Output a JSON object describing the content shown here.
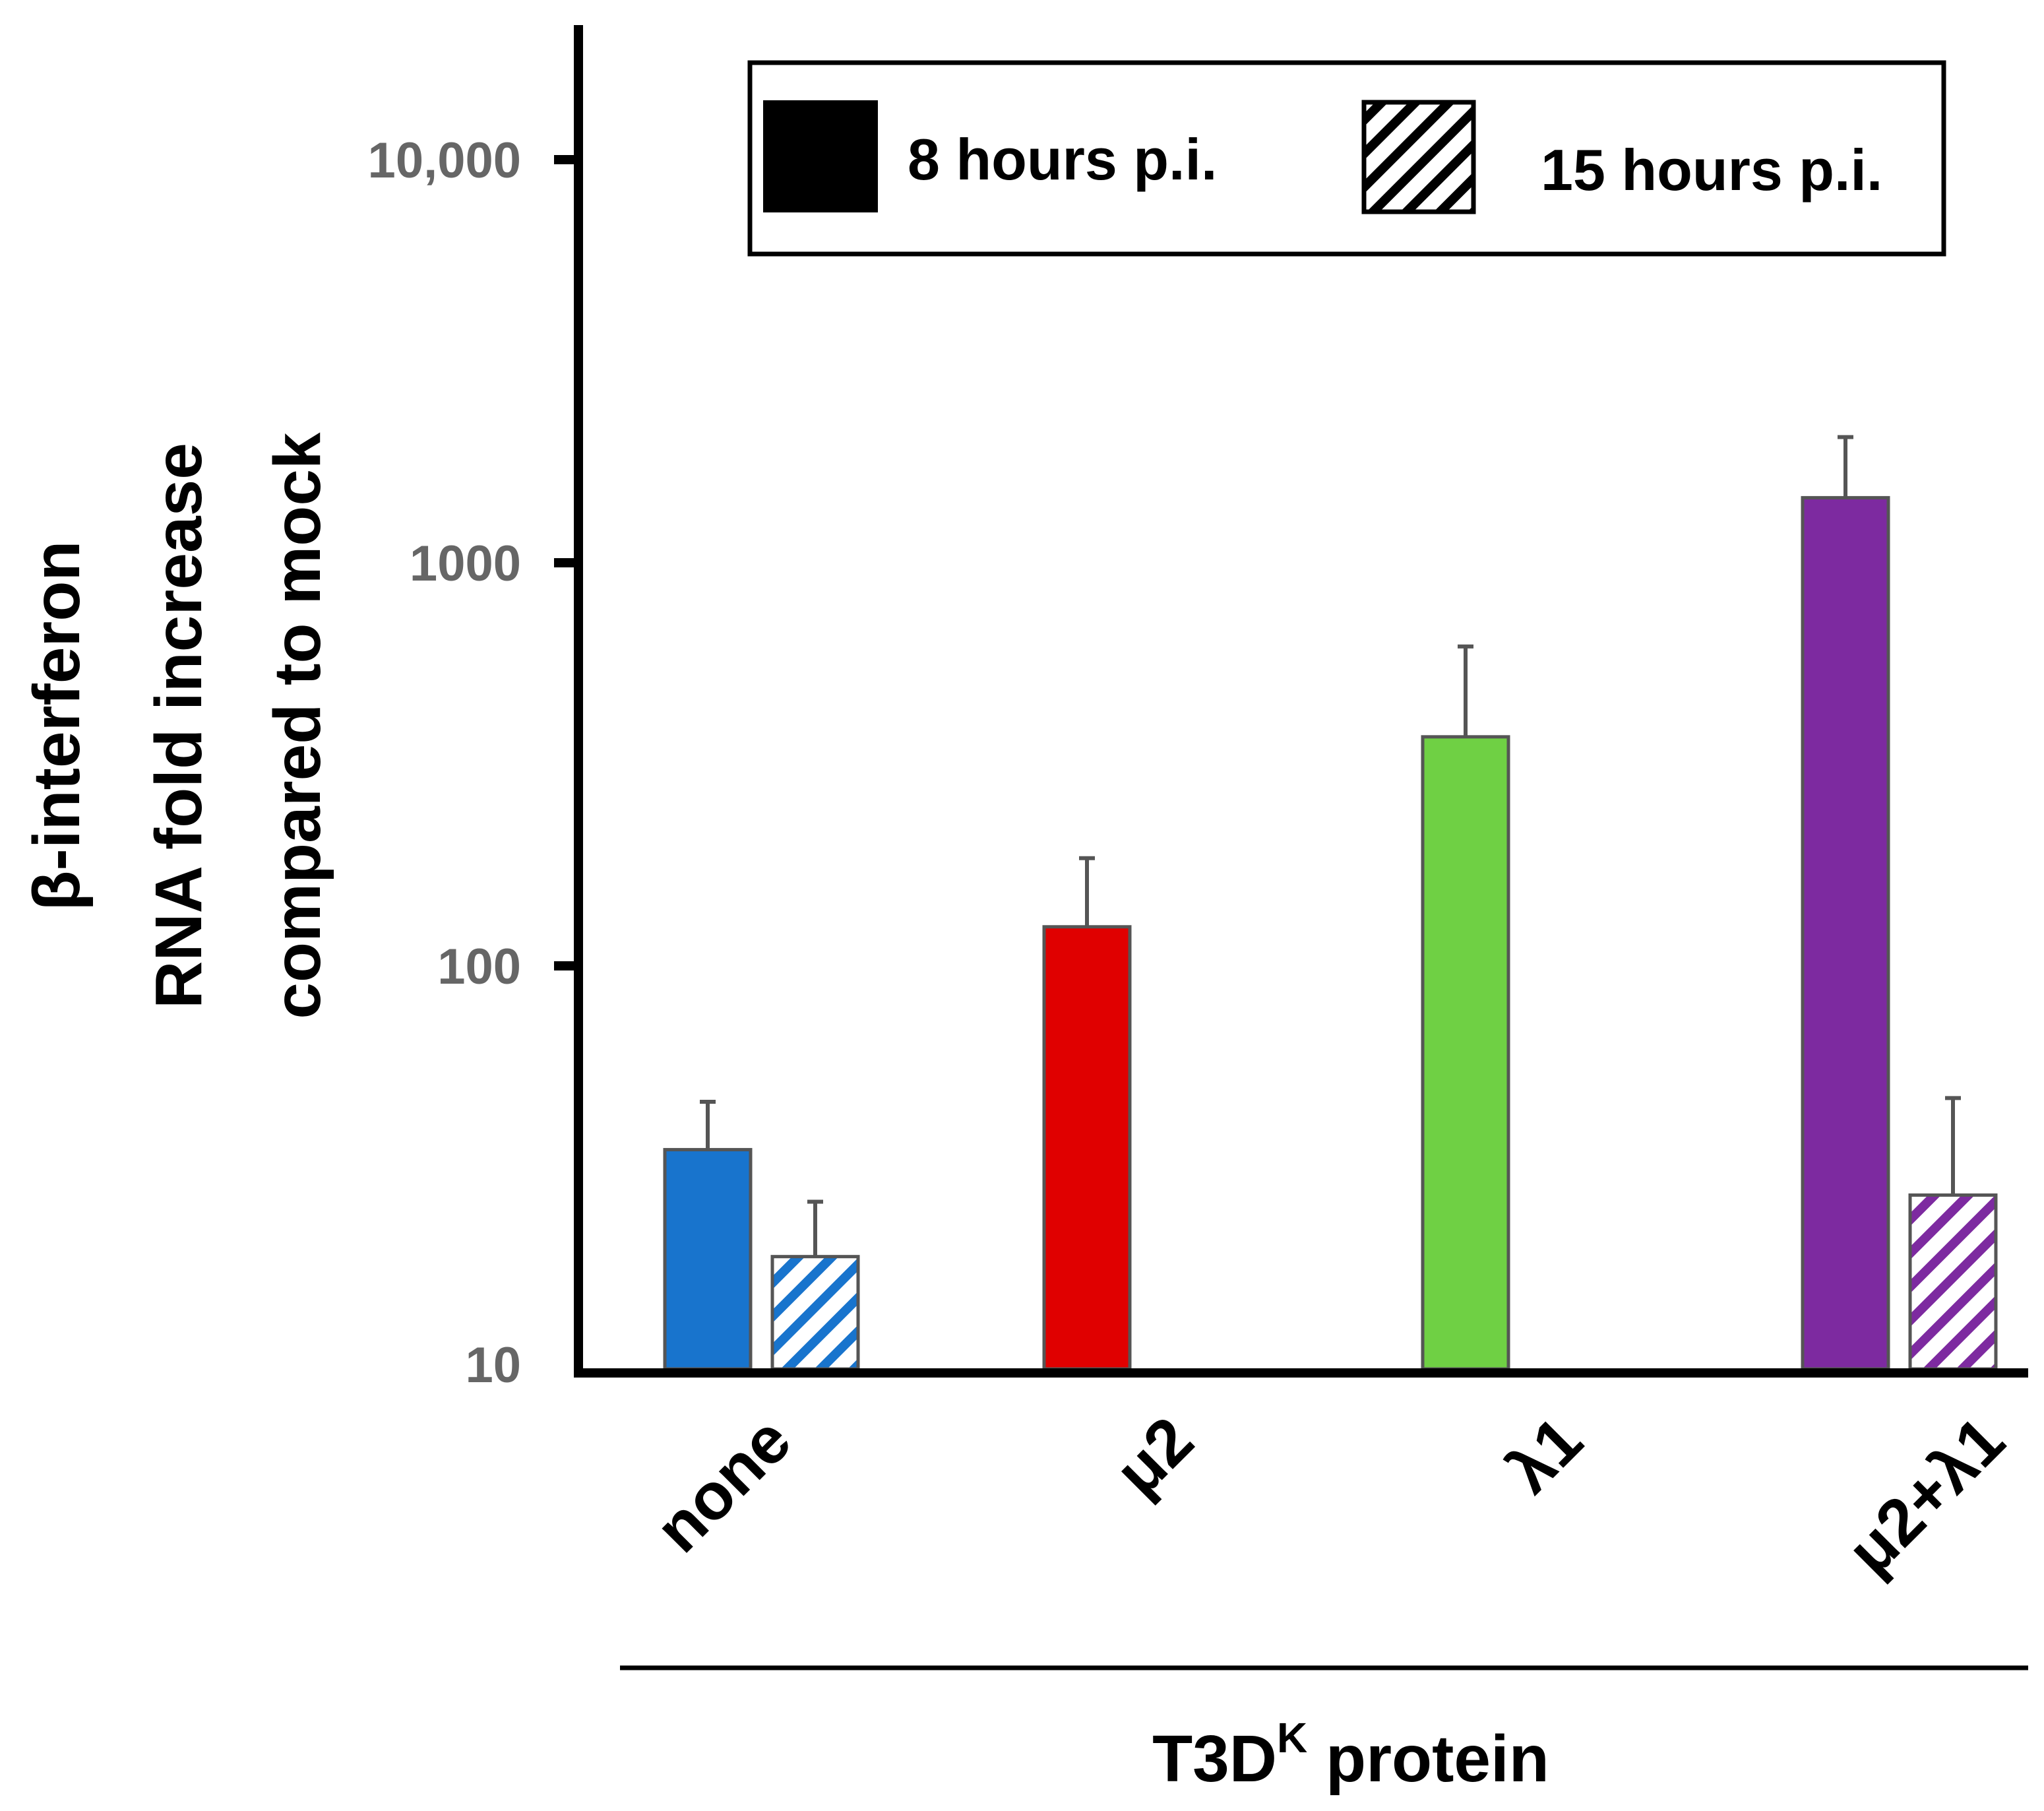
{
  "chart_data": {
    "type": "bar",
    "scale": "log",
    "categories": [
      "none",
      "μ2",
      "λ1",
      "μ2+λ1"
    ],
    "series": [
      {
        "name": "8 hours p.i.",
        "pattern": "solid",
        "values": [
          35,
          125,
          370,
          1450
        ],
        "errors_upper": [
          46,
          185,
          620,
          2050
        ]
      },
      {
        "name": "15 hours p.i.",
        "pattern": "hatched",
        "values": [
          19,
          null,
          null,
          27
        ],
        "errors_upper": [
          26,
          null,
          null,
          47
        ]
      }
    ],
    "colors": [
      "#1874cd",
      "#e00000",
      "#6fd044",
      "#7d2aa0"
    ],
    "ylim": [
      10,
      20000
    ],
    "yticks": [
      {
        "value": 10000,
        "label": "10,000"
      },
      {
        "value": 1000,
        "label": "1000"
      },
      {
        "value": 100,
        "label": "100"
      },
      {
        "value": 10,
        "label": "10"
      }
    ],
    "ylabel_lines": [
      "β-interferon",
      "RNA fold increase",
      "compared to mock"
    ],
    "xlabel": {
      "main": "T3D",
      "superscript": "K",
      "rest": " protein"
    },
    "legend": [
      "8 hours p.i.",
      "15 hours p.i."
    ],
    "legend_position": "top-right"
  }
}
